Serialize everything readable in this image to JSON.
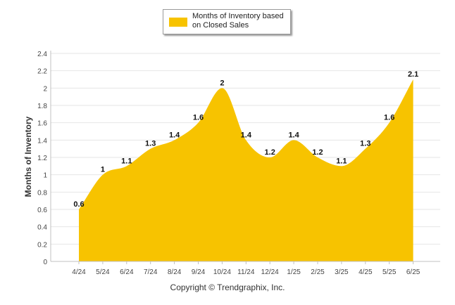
{
  "chart_data": {
    "type": "area",
    "title": "",
    "xlabel": "",
    "ylabel": "Months of Inventory",
    "categories": [
      "4/24",
      "5/24",
      "6/24",
      "7/24",
      "8/24",
      "9/24",
      "10/24",
      "11/24",
      "12/24",
      "1/25",
      "2/25",
      "3/25",
      "4/25",
      "5/25",
      "6/25"
    ],
    "series": [
      {
        "name": "Months of Inventory based on Closed Sales",
        "values": [
          0.6,
          1,
          1.1,
          1.3,
          1.4,
          1.6,
          2,
          1.4,
          1.2,
          1.4,
          1.2,
          1.1,
          1.3,
          1.6,
          2.1
        ],
        "labels": [
          "0.6",
          "1",
          "1.1",
          "1.3",
          "1.4",
          "1.6",
          "2",
          "1.4",
          "1.2",
          "1.4",
          "1.2",
          "1.1",
          "1.3",
          "1.6",
          "2.1"
        ],
        "color": "#f7c300"
      }
    ],
    "ylim": [
      0,
      2.4
    ],
    "yticks": [
      "0",
      "0.2",
      "0.4",
      "0.6",
      "0.8",
      "1",
      "1.2",
      "1.4",
      "1.6",
      "1.8",
      "2",
      "2.2",
      "2.4"
    ],
    "grid": true,
    "legend": "top-center",
    "legend_lines": [
      "Months of Inventory based",
      "on Closed Sales"
    ]
  },
  "footer": {
    "copyright": "Copyright © Trendgraphix, Inc."
  },
  "colors": {
    "area": "#f7c300",
    "grid": "#e6e6e6",
    "axis": "#c0c0c0"
  }
}
